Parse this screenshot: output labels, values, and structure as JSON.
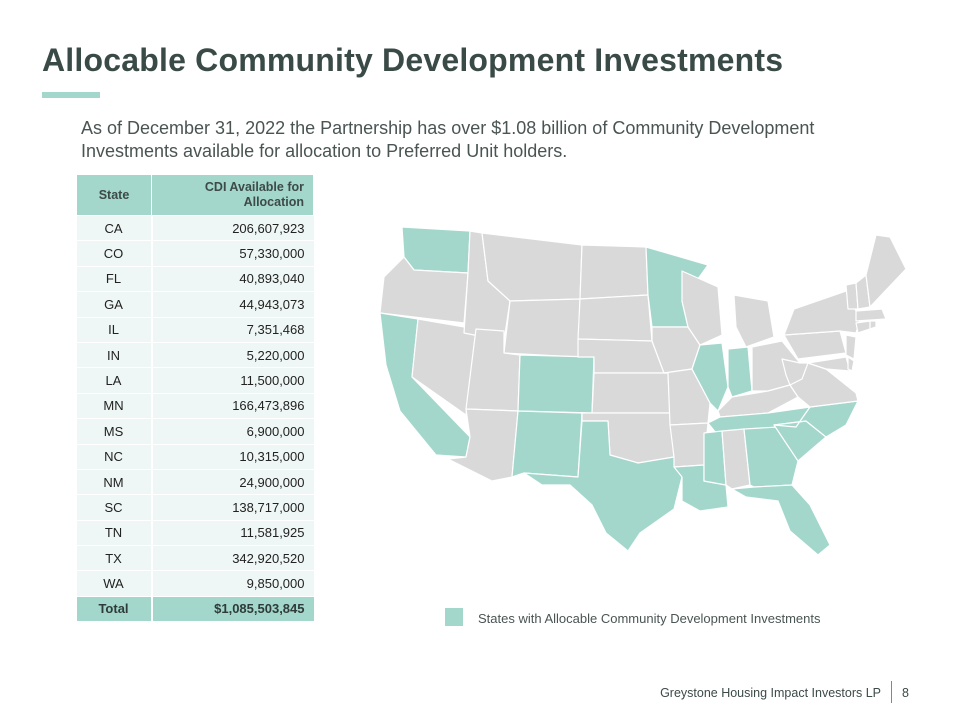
{
  "slide": {
    "title": "Allocable Community Development Investments",
    "intro": "As of December 31, 2022 the Partnership has over $1.08 billion of Community Development Investments available for allocation to Preferred Unit holders."
  },
  "table": {
    "headers": {
      "state": "State",
      "value": "CDI Available for Allocation"
    },
    "rows": [
      {
        "state": "CA",
        "value": "206,607,923"
      },
      {
        "state": "CO",
        "value": "57,330,000"
      },
      {
        "state": "FL",
        "value": "40,893,040"
      },
      {
        "state": "GA",
        "value": "44,943,073"
      },
      {
        "state": "IL",
        "value": "7,351,468"
      },
      {
        "state": "IN",
        "value": "5,220,000"
      },
      {
        "state": "LA",
        "value": "11,500,000"
      },
      {
        "state": "MN",
        "value": "166,473,896"
      },
      {
        "state": "MS",
        "value": "6,900,000"
      },
      {
        "state": "NC",
        "value": "10,315,000"
      },
      {
        "state": "NM",
        "value": "24,900,000"
      },
      {
        "state": "SC",
        "value": "138,717,000"
      },
      {
        "state": "TN",
        "value": "11,581,925"
      },
      {
        "state": "TX",
        "value": "342,920,520"
      },
      {
        "state": "WA",
        "value": "9,850,000"
      }
    ],
    "total": {
      "label": "Total",
      "value": "$1,085,503,845"
    }
  },
  "map": {
    "highlighted_states": [
      "CA",
      "CO",
      "FL",
      "GA",
      "IL",
      "IN",
      "LA",
      "MN",
      "MS",
      "NC",
      "NM",
      "SC",
      "TN",
      "TX",
      "WA"
    ],
    "highlight_color": "#a3d7cb",
    "base_color": "#d9d9d9"
  },
  "legend": {
    "label": "States with Allocable Community Development Investments"
  },
  "footer": {
    "company": "Greystone Housing Impact Investors LP",
    "page": "8"
  }
}
